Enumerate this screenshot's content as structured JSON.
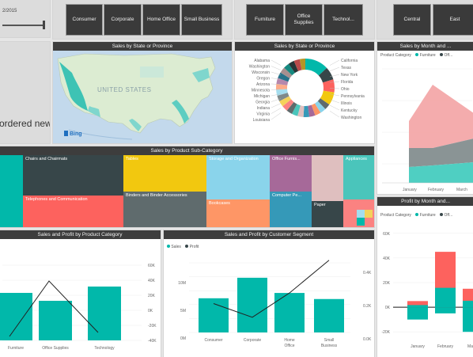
{
  "date_slicer": {
    "date_text": "2/2015"
  },
  "ordered": {
    "text": "ordered new"
  },
  "segment_slicer": {
    "items": [
      "Consumer",
      "Corporate",
      "Home Office",
      "Small Business"
    ]
  },
  "category_slicer": {
    "items": [
      "Furniture",
      "Office Supplies",
      "Technol..."
    ]
  },
  "region_slicer": {
    "items": [
      "Central",
      "East"
    ]
  },
  "map": {
    "title": "Sales by State or Province",
    "country_label": "UNITED STATES",
    "bing_label": "Bing"
  },
  "donut": {
    "title": "Sales by State or Province",
    "colors": [
      "#01b8aa",
      "#374649",
      "#fd625e",
      "#f2c80f",
      "#5f6b6d",
      "#8ad4eb",
      "#fe9666",
      "#a66999",
      "#3599b8",
      "#dfbfbf",
      "#4ac5bb",
      "#5f6b6d",
      "#fb8281",
      "#f4d25a",
      "#7f898a",
      "#a4ddee",
      "#fdab89",
      "#b687ac",
      "#28738a",
      "#a78f8f",
      "#168980",
      "#293537",
      "#bb4a4a",
      "#b59525"
    ],
    "labels_left": [
      "Alabama",
      "Washington",
      "Wisconsin",
      "Oregon",
      "Arizona",
      "Minnesota",
      "Michigan",
      "Georgia",
      "Indiana",
      "Virginia",
      "Louisiana"
    ],
    "labels_right": [
      "California",
      "Texas",
      "New York",
      "Florida",
      "Ohio",
      "Pennsylvania",
      "Illinois",
      "Kentucky",
      "Washington"
    ]
  },
  "month_area": {
    "title": "Sales by Month and ...",
    "legend_label": "Product Category",
    "legend": [
      "Furniture",
      "Off..."
    ],
    "x_labels": [
      "January",
      "February",
      "March"
    ]
  },
  "treemap": {
    "title": "Sales by Product Sub-Category",
    "cells": [
      "",
      "Chairs and Chairmats",
      "Tables",
      "Storage and Organization",
      "Office Furnis...",
      "",
      "Appliances",
      "Telephones and Communication",
      "Binders and Binder Accessories",
      "Bookcases",
      "Computer Pe...",
      "Paper",
      ""
    ]
  },
  "chart_data": [
    {
      "type": "bar",
      "title": "Sales and Profit by Product Category",
      "categories": [
        "Furniture",
        "Office Supplies",
        "Technology"
      ],
      "series": [
        {
          "name": "",
          "values": [
            0.6,
            0.5,
            0.68
          ]
        },
        {
          "name": "",
          "values": [
            0.05,
            0.75,
            0.1
          ]
        }
      ],
      "y_right_ticks": [
        "60K",
        "40K",
        "20K",
        "0K",
        "-20K",
        "-40K"
      ],
      "ylim": [
        0,
        1
      ]
    },
    {
      "type": "bar",
      "title": "Sales and Profit by Customer Segment",
      "legend": [
        "Sales",
        "Profit"
      ],
      "categories": [
        "Consumer",
        "Corporate",
        "Home Office",
        "Small Business"
      ],
      "series": [
        {
          "name": "Sales",
          "values": [
            0.45,
            0.72,
            0.52,
            0.44
          ]
        },
        {
          "name": "Profit",
          "values": [
            0.38,
            0.2,
            0.52,
            0.95
          ]
        }
      ],
      "y_left_ticks": [
        "10M",
        "5M",
        "0M"
      ],
      "y_right_ticks": [
        "0.4K",
        "0.2K",
        "0.0K"
      ],
      "ylim": [
        0,
        1
      ]
    },
    {
      "type": "bar",
      "title": "Profit by Month and...",
      "legend_label": "Product Category",
      "legend": [
        "Furniture",
        "Off..."
      ],
      "categories": [
        "January",
        "February",
        "March"
      ],
      "series": [
        {
          "name": "Furniture",
          "values": [
            5,
            45,
            15
          ]
        },
        {
          "name": "Off...",
          "values": [
            -10,
            -5,
            -20
          ]
        }
      ],
      "y_ticks": [
        "60K",
        "40K",
        "20K",
        "0K",
        "-20K"
      ],
      "ylim": [
        -25,
        65
      ]
    }
  ]
}
